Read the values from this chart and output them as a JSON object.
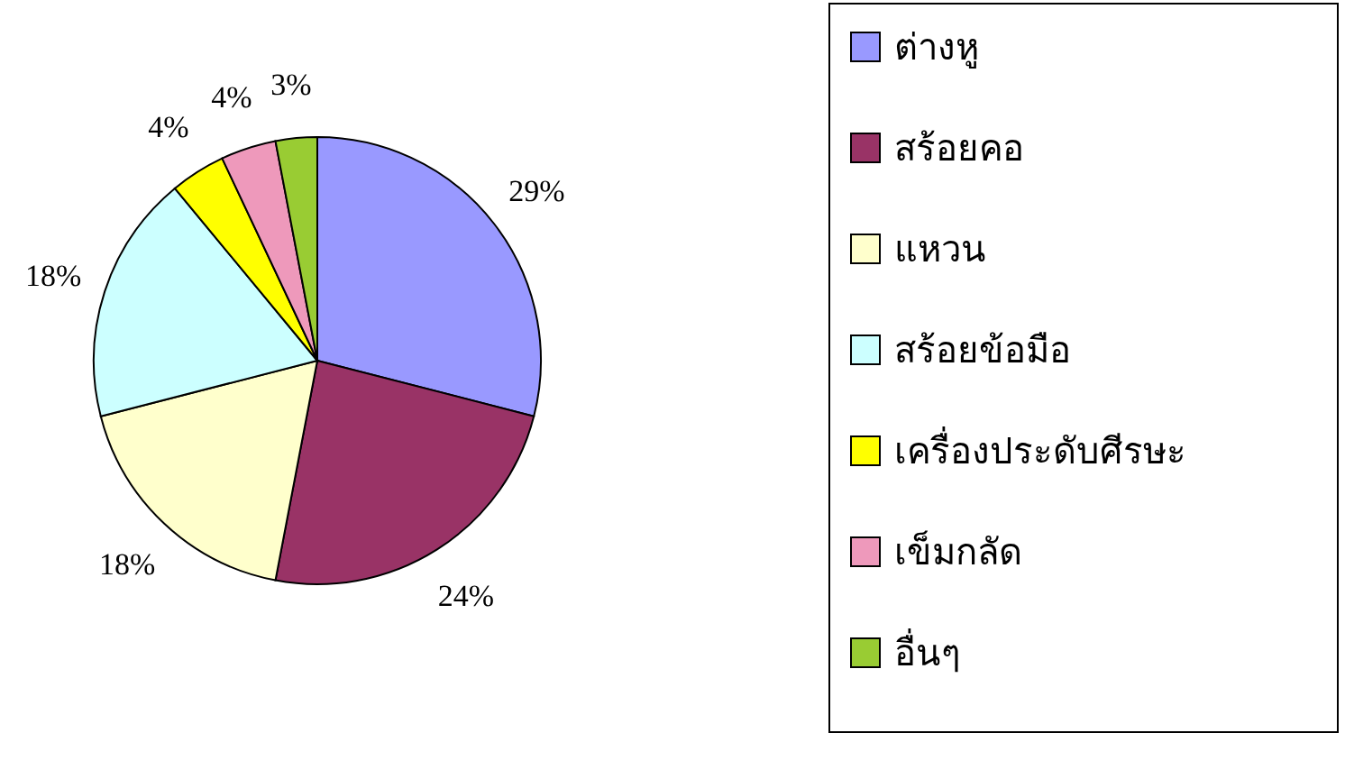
{
  "chart_data": {
    "type": "pie",
    "categories": [
      "ต่างหู",
      "สร้อยคอ",
      "แหวน",
      "สร้อยข้อมือ",
      "เครื่องประดับศีรษะ",
      "เข็มกลัด",
      "อื่นๆ"
    ],
    "values": [
      29,
      24,
      18,
      18,
      4,
      4,
      3
    ],
    "colors": [
      "#9999ff",
      "#993366",
      "#ffffcc",
      "#ccffff",
      "#ffff00",
      "#ee99bb",
      "#99cc33"
    ],
    "value_labels": [
      "29%",
      "24%",
      "18%",
      "18%",
      "4%",
      "4%",
      "3%"
    ],
    "legend": "right"
  }
}
